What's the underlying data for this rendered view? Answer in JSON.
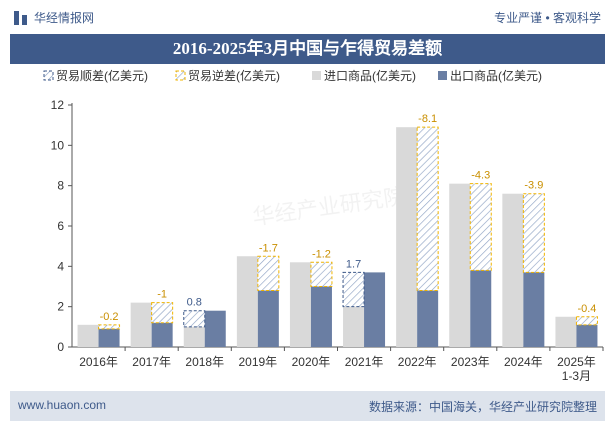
{
  "header": {
    "brand": "华经情报网",
    "tagline": "专业严谨 • 客观科学"
  },
  "title": "2016-2025年3月中国与乍得贸易差额",
  "footer": {
    "website": "www.huaon.com",
    "source": "数据来源：中国海关，华经产业研究院整理"
  },
  "watermark": "华经产业研究院",
  "colors": {
    "brand": "#3e5a8a",
    "import_bar": "#d9d9d9",
    "export_bar": "#6a7ea3",
    "surplus_outline": "#3e5a8a",
    "deficit_outline": "#f0b400"
  },
  "chart_data": {
    "type": "bar",
    "categories": [
      "2016年",
      "2017年",
      "2018年",
      "2019年",
      "2020年",
      "2021年",
      "2022年",
      "2023年",
      "2024年",
      "2025年\n1-3月"
    ],
    "series": [
      {
        "name": "进口商品(亿美元)",
        "values": [
          1.1,
          2.2,
          1.0,
          4.5,
          4.2,
          2.0,
          10.9,
          8.1,
          7.6,
          1.5
        ]
      },
      {
        "name": "出口商品(亿美元)",
        "values": [
          0.9,
          1.2,
          1.8,
          2.8,
          3.0,
          3.7,
          2.8,
          3.8,
          3.7,
          1.1
        ]
      }
    ],
    "balance": {
      "surplus_name": "贸易顺差(亿美元)",
      "deficit_name": "贸易逆差(亿美元)",
      "values": [
        -0.2,
        -1,
        0.8,
        -1.7,
        -1.2,
        1.7,
        -8.1,
        -4.3,
        -3.9,
        -0.4
      ],
      "labels": [
        "-0.2",
        "-1",
        "0.8",
        "-1.7",
        "-1.2",
        "1.7",
        "-8.1",
        "-4.3",
        "-3.9",
        "-0.4"
      ]
    },
    "ylim": [
      0,
      12
    ],
    "yticks": [
      0,
      2,
      4,
      6,
      8,
      10,
      12
    ],
    "grid": false,
    "legend_position": "top"
  }
}
